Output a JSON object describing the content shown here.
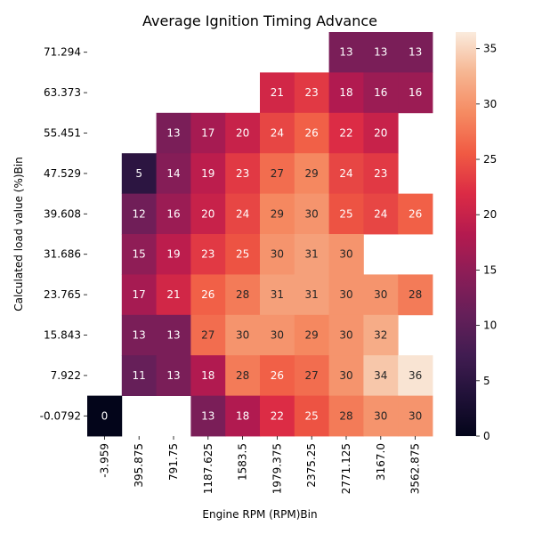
{
  "chart_data": {
    "type": "heatmap",
    "title": "Average Ignition Timing Advance",
    "xlabel": "Engine RPM (RPM)Bin",
    "ylabel": "Calculated load value (%)Bin",
    "x_categories": [
      "-3.959",
      "395.875",
      "791.75",
      "1187.625",
      "1583.5",
      "1979.375",
      "2375.25",
      "2771.125",
      "3167.0",
      "3562.875"
    ],
    "y_categories": [
      "71.294",
      "63.373",
      "55.451",
      "47.529",
      "39.608",
      "31.686",
      "23.765",
      "15.843",
      "7.922",
      "-0.0792"
    ],
    "values": [
      [
        null,
        null,
        null,
        null,
        null,
        null,
        null,
        13,
        13,
        13
      ],
      [
        null,
        null,
        null,
        null,
        null,
        21,
        23,
        18,
        16,
        16
      ],
      [
        null,
        null,
        13,
        17,
        20,
        24,
        26,
        22,
        20,
        null
      ],
      [
        null,
        5,
        14,
        19,
        23,
        27,
        29,
        24,
        23,
        null
      ],
      [
        null,
        12,
        16,
        20,
        24,
        29,
        30,
        25,
        24,
        26
      ],
      [
        null,
        15,
        19,
        23,
        25,
        30,
        31,
        30,
        null,
        null
      ],
      [
        null,
        17,
        21,
        26,
        28,
        31,
        31,
        30,
        30,
        28
      ],
      [
        null,
        13,
        13,
        27,
        30,
        30,
        29,
        30,
        32,
        null
      ],
      [
        null,
        11,
        13,
        18,
        28,
        26,
        27,
        30,
        34,
        36
      ],
      [
        0,
        null,
        null,
        13,
        18,
        22,
        25,
        28,
        30,
        30
      ]
    ],
    "colorbar": {
      "min": 0,
      "max": 36.5,
      "ticks": [
        0,
        5,
        10,
        15,
        20,
        25,
        30,
        35
      ],
      "colormap": "rocket",
      "placement": "right"
    },
    "grid": false,
    "legend": "none"
  }
}
